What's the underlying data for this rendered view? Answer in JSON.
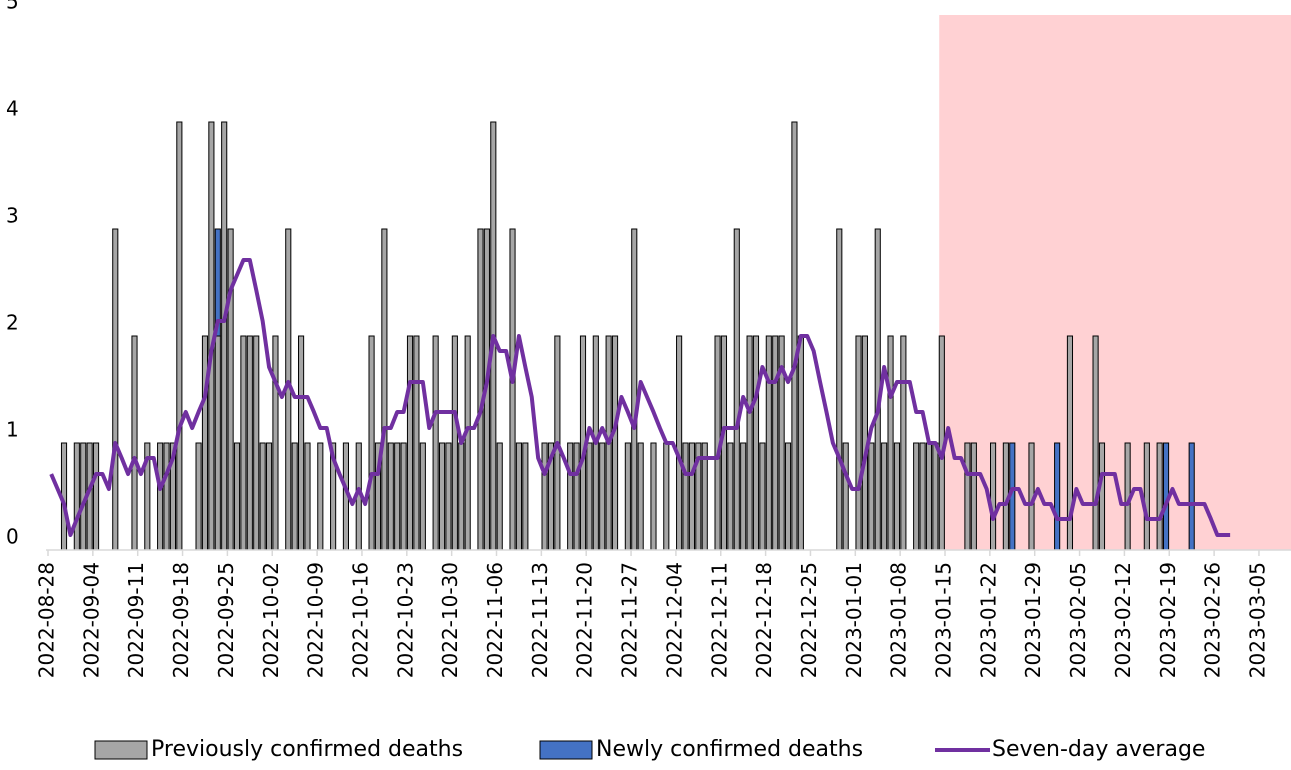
{
  "chart_data": {
    "type": "bar",
    "stacked": true,
    "x": [
      "2022-08-28",
      "2022-08-29",
      "2022-08-30",
      "2022-08-31",
      "2022-09-01",
      "2022-09-02",
      "2022-09-03",
      "2022-09-04",
      "2022-09-05",
      "2022-09-06",
      "2022-09-07",
      "2022-09-08",
      "2022-09-09",
      "2022-09-10",
      "2022-09-11",
      "2022-09-12",
      "2022-09-13",
      "2022-09-14",
      "2022-09-15",
      "2022-09-16",
      "2022-09-17",
      "2022-09-18",
      "2022-09-19",
      "2022-09-20",
      "2022-09-21",
      "2022-09-22",
      "2022-09-23",
      "2022-09-24",
      "2022-09-25",
      "2022-09-26",
      "2022-09-27",
      "2022-09-28",
      "2022-09-29",
      "2022-09-30",
      "2022-10-01",
      "2022-10-02",
      "2022-10-03",
      "2022-10-04",
      "2022-10-05",
      "2022-10-06",
      "2022-10-07",
      "2022-10-08",
      "2022-10-09",
      "2022-10-10",
      "2022-10-11",
      "2022-10-12",
      "2022-10-13",
      "2022-10-14",
      "2022-10-15",
      "2022-10-16",
      "2022-10-17",
      "2022-10-18",
      "2022-10-19",
      "2022-10-20",
      "2022-10-21",
      "2022-10-22",
      "2022-10-23",
      "2022-10-24",
      "2022-10-25",
      "2022-10-26",
      "2022-10-27",
      "2022-10-28",
      "2022-10-29",
      "2022-10-30",
      "2022-10-31",
      "2022-11-01",
      "2022-11-02",
      "2022-11-03",
      "2022-11-04",
      "2022-11-05",
      "2022-11-06",
      "2022-11-07",
      "2022-11-08",
      "2022-11-09",
      "2022-11-10",
      "2022-11-11",
      "2022-11-12",
      "2022-11-13",
      "2022-11-14",
      "2022-11-15",
      "2022-11-16",
      "2022-11-17",
      "2022-11-18",
      "2022-11-19",
      "2022-11-20",
      "2022-11-21",
      "2022-11-22",
      "2022-11-23",
      "2022-11-24",
      "2022-11-25",
      "2022-11-26",
      "2022-11-27",
      "2022-11-28",
      "2022-11-29",
      "2022-11-30",
      "2022-12-01",
      "2022-12-02",
      "2022-12-03",
      "2022-12-04",
      "2022-12-05",
      "2022-12-06",
      "2022-12-07",
      "2022-12-08",
      "2022-12-09",
      "2022-12-10",
      "2022-12-11",
      "2022-12-12",
      "2022-12-13",
      "2022-12-14",
      "2022-12-15",
      "2022-12-16",
      "2022-12-17",
      "2022-12-18",
      "2022-12-19",
      "2022-12-20",
      "2022-12-21",
      "2022-12-22",
      "2022-12-23",
      "2022-12-24",
      "2022-12-25",
      "2022-12-26",
      "2022-12-27",
      "2022-12-28",
      "2022-12-29",
      "2022-12-30",
      "2022-12-31",
      "2023-01-01",
      "2023-01-02",
      "2023-01-03",
      "2023-01-04",
      "2023-01-05",
      "2023-01-06",
      "2023-01-07",
      "2023-01-08",
      "2023-01-09",
      "2023-01-10",
      "2023-01-11",
      "2023-01-12",
      "2023-01-13",
      "2023-01-14",
      "2023-01-15",
      "2023-01-16",
      "2023-01-17",
      "2023-01-18",
      "2023-01-19",
      "2023-01-20",
      "2023-01-21",
      "2023-01-22",
      "2023-01-23",
      "2023-01-24",
      "2023-01-25",
      "2023-01-26",
      "2023-01-27",
      "2023-01-28",
      "2023-01-29",
      "2023-01-30",
      "2023-01-31",
      "2023-02-01",
      "2023-02-02",
      "2023-02-03",
      "2023-02-04",
      "2023-02-05",
      "2023-02-06",
      "2023-02-07",
      "2023-02-08",
      "2023-02-09",
      "2023-02-10",
      "2023-02-11",
      "2023-02-12",
      "2023-02-13",
      "2023-02-14",
      "2023-02-15",
      "2023-02-16",
      "2023-02-17",
      "2023-02-18",
      "2023-02-19",
      "2023-02-20",
      "2023-02-21",
      "2023-02-22",
      "2023-02-23",
      "2023-02-24",
      "2023-02-25",
      "2023-02-26",
      "2023-02-27",
      "2023-02-28"
    ],
    "series": [
      {
        "name": "Previously confirmed deaths",
        "color": "#a6a6a6",
        "type": "bar",
        "values": [
          0,
          0,
          1,
          0,
          1,
          1,
          1,
          1,
          0,
          0,
          3,
          0,
          0,
          2,
          0,
          1,
          0,
          1,
          1,
          1,
          4,
          0,
          0,
          1,
          2,
          4,
          2,
          4,
          3,
          1,
          2,
          2,
          2,
          1,
          1,
          2,
          0,
          3,
          1,
          2,
          1,
          0,
          1,
          0,
          1,
          0,
          1,
          0,
          1,
          0,
          2,
          1,
          3,
          1,
          1,
          1,
          2,
          2,
          1,
          0,
          2,
          1,
          1,
          2,
          1,
          2,
          0,
          3,
          3,
          4,
          1,
          0,
          3,
          1,
          1,
          0,
          0,
          1,
          1,
          2,
          0,
          1,
          1,
          2,
          1,
          2,
          1,
          2,
          2,
          0,
          1,
          3,
          1,
          0,
          1,
          0,
          1,
          0,
          2,
          1,
          1,
          1,
          1,
          0,
          2,
          2,
          1,
          3,
          1,
          2,
          2,
          1,
          2,
          2,
          2,
          1,
          4,
          2,
          0,
          0,
          0,
          0,
          0,
          3,
          1,
          0,
          2,
          2,
          1,
          3,
          1,
          2,
          1,
          2,
          0,
          1,
          1,
          1,
          1,
          2,
          0,
          0,
          0,
          1,
          1,
          0,
          0,
          1,
          0,
          1,
          0,
          0,
          0,
          1,
          0,
          0,
          0,
          0,
          0,
          2,
          0,
          0,
          0,
          2,
          1,
          0,
          0,
          0,
          1,
          0,
          0,
          1,
          0,
          1,
          0,
          0,
          0,
          0,
          0,
          0,
          0,
          0,
          0,
          0,
          0
        ]
      },
      {
        "name": "Newly confirmed deaths",
        "color": "#4472c4",
        "type": "bar",
        "values": [
          0,
          0,
          0,
          0,
          0,
          0,
          0,
          0,
          0,
          0,
          0,
          0,
          0,
          0,
          0,
          0,
          0,
          0,
          0,
          0,
          0,
          0,
          0,
          0,
          0,
          0,
          1,
          0,
          0,
          0,
          0,
          0,
          0,
          0,
          0,
          0,
          0,
          0,
          0,
          0,
          0,
          0,
          0,
          0,
          0,
          0,
          0,
          0,
          0,
          0,
          0,
          0,
          0,
          0,
          0,
          0,
          0,
          0,
          0,
          0,
          0,
          0,
          0,
          0,
          0,
          0,
          0,
          0,
          0,
          0,
          0,
          0,
          0,
          0,
          0,
          0,
          0,
          0,
          0,
          0,
          0,
          0,
          0,
          0,
          0,
          0,
          0,
          0,
          0,
          0,
          0,
          0,
          0,
          0,
          0,
          0,
          0,
          0,
          0,
          0,
          0,
          0,
          0,
          0,
          0,
          0,
          0,
          0,
          0,
          0,
          0,
          0,
          0,
          0,
          0,
          0,
          0,
          0,
          0,
          0,
          0,
          0,
          0,
          0,
          0,
          0,
          0,
          0,
          0,
          0,
          0,
          0,
          0,
          0,
          0,
          0,
          0,
          0,
          0,
          0,
          0,
          0,
          0,
          0,
          0,
          0,
          0,
          0,
          0,
          0,
          1,
          0,
          0,
          0,
          0,
          0,
          0,
          1,
          0,
          0,
          0,
          0,
          0,
          0,
          0,
          0,
          0,
          0,
          0,
          0,
          0,
          0,
          0,
          0,
          1,
          0,
          0,
          0,
          1,
          0,
          0,
          0,
          0,
          0,
          0
        ]
      },
      {
        "name": "Seven-day average",
        "color": "#7030a0",
        "type": "line",
        "values": [
          0.71,
          0.57,
          0.43,
          0.14,
          0.29,
          0.43,
          0.57,
          0.71,
          0.71,
          0.57,
          1.0,
          0.86,
          0.71,
          0.86,
          0.71,
          0.86,
          0.86,
          0.57,
          0.71,
          0.86,
          1.14,
          1.29,
          1.14,
          1.29,
          1.43,
          1.86,
          2.14,
          2.14,
          2.43,
          2.57,
          2.71,
          2.71,
          2.43,
          2.14,
          1.71,
          1.57,
          1.43,
          1.57,
          1.43,
          1.43,
          1.43,
          1.29,
          1.14,
          1.14,
          0.86,
          0.71,
          0.57,
          0.43,
          0.57,
          0.43,
          0.71,
          0.71,
          1.14,
          1.14,
          1.29,
          1.29,
          1.57,
          1.57,
          1.57,
          1.14,
          1.29,
          1.29,
          1.29,
          1.29,
          1.0,
          1.14,
          1.14,
          1.29,
          1.57,
          2.0,
          1.86,
          1.86,
          1.57,
          2.0,
          1.71,
          1.43,
          0.86,
          0.71,
          0.86,
          1.0,
          0.86,
          0.71,
          0.71,
          0.86,
          1.14,
          1.0,
          1.14,
          1.0,
          1.14,
          1.43,
          1.29,
          1.14,
          1.57,
          1.43,
          1.29,
          1.14,
          1.0,
          1.0,
          0.86,
          0.71,
          0.71,
          0.86,
          0.86,
          0.86,
          0.86,
          1.14,
          1.14,
          1.14,
          1.43,
          1.29,
          1.43,
          1.71,
          1.57,
          1.57,
          1.71,
          1.57,
          1.71,
          2.0,
          2.0,
          1.86,
          1.57,
          1.29,
          1.0,
          0.86,
          0.71,
          0.57,
          0.57,
          0.86,
          1.14,
          1.29,
          1.71,
          1.43,
          1.57,
          1.57,
          1.57,
          1.29,
          1.29,
          1.0,
          1.0,
          0.86,
          1.14,
          0.86,
          0.86,
          0.71,
          0.71,
          0.71,
          0.57,
          0.29,
          0.43,
          0.43,
          0.57,
          0.57,
          0.43,
          0.43,
          0.57,
          0.43,
          0.43,
          0.29,
          0.29,
          0.29,
          0.57,
          0.43,
          0.43,
          0.43,
          0.71,
          0.71,
          0.71,
          0.43,
          0.43,
          0.57,
          0.57,
          0.29,
          0.29,
          0.29,
          0.43,
          0.57,
          0.43,
          0.43,
          0.43,
          0.43,
          0.43,
          0.29,
          0.14,
          0.14,
          0.14
        ]
      }
    ],
    "xlim": [
      "2022-08-28",
      "2023-03-10"
    ],
    "xticks": [
      "2022-08-28",
      "2022-09-04",
      "2022-09-11",
      "2022-09-18",
      "2022-09-25",
      "2022-10-02",
      "2022-10-09",
      "2022-10-16",
      "2022-10-23",
      "2022-10-30",
      "2022-11-06",
      "2022-11-13",
      "2022-11-20",
      "2022-11-27",
      "2022-12-04",
      "2022-12-11",
      "2022-12-18",
      "2022-12-25",
      "2023-01-01",
      "2023-01-08",
      "2023-01-15",
      "2023-01-22",
      "2023-01-29",
      "2023-02-05",
      "2023-02-12",
      "2023-02-19",
      "2023-02-26",
      "2023-03-05"
    ],
    "ylim": [
      0,
      5
    ],
    "yticks": [
      0,
      1,
      2,
      3,
      4,
      5
    ],
    "shaded_from": "2023-01-15",
    "shade_color": "#ffd1d3",
    "grid": false,
    "legend": "bottom"
  }
}
